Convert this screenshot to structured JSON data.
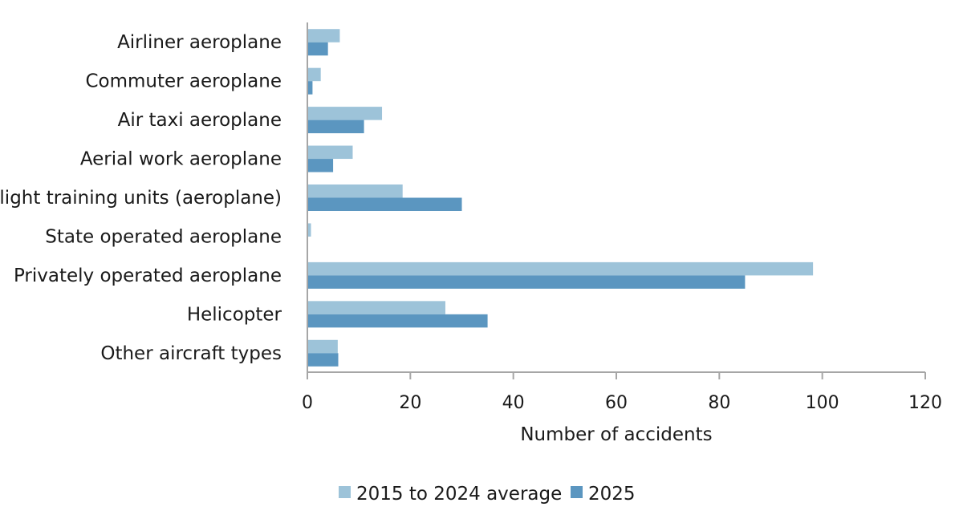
{
  "colors": {
    "series_avg": "#9dc3d9",
    "series_2025": "#5b96c0",
    "axis": "#a6a6a6"
  },
  "chart_data": {
    "type": "bar",
    "orientation": "horizontal",
    "categories": [
      "Airliner aeroplane",
      "Commuter aeroplane",
      "Air taxi aeroplane",
      "Aerial work aeroplane",
      "Flight training units (aeroplane)",
      "State operated aeroplane",
      "Privately operated aeroplane",
      "Helicopter",
      "Other aircraft types"
    ],
    "series": [
      {
        "name": "2015 to 2024 average",
        "values": [
          6.3,
          2.6,
          14.5,
          8.8,
          18.5,
          0.7,
          98.2,
          26.8,
          5.9
        ]
      },
      {
        "name": "2025",
        "values": [
          4,
          1,
          11,
          5,
          30,
          0,
          85,
          35,
          6
        ]
      }
    ],
    "xlabel": "Number of accidents",
    "xlim": [
      0,
      120
    ],
    "xticks": [
      0,
      20,
      40,
      60,
      80,
      100,
      120
    ],
    "grid": false,
    "legend_position": "bottom-center"
  }
}
